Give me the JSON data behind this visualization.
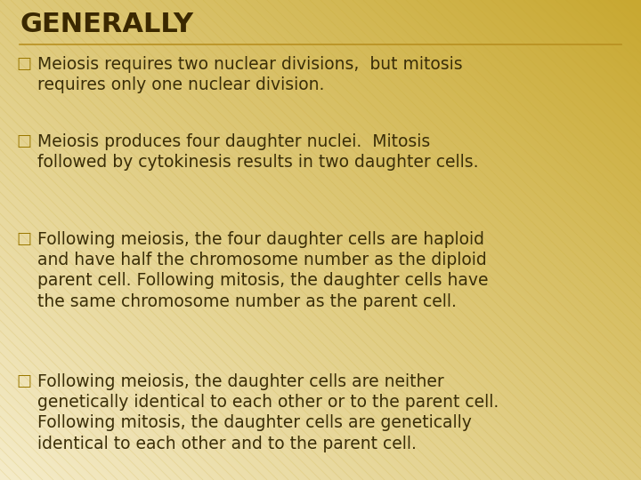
{
  "title": "GENERALLY",
  "title_color": "#3a2800",
  "title_fontsize": 22,
  "bg_color_tl": "#f5ecca",
  "bg_color_br": "#c8a830",
  "divider_color": "#b89020",
  "text_color": "#3a2e08",
  "bullet_char": "□",
  "bullet_color": "#9a7800",
  "bullet_fontsize": 13,
  "text_fontsize": 13.5,
  "stripe_color": "#c8a830",
  "stripe_alpha": 0.18,
  "bullets": [
    "Meiosis requires two nuclear divisions,  but mitosis\nrequires only one nuclear division.",
    "Meiosis produces four daughter nuclei.  Mitosis\nfollowed by cytokinesis results in two daughter cells.",
    "Following meiosis, the four daughter cells are haploid\nand have half the chromosome number as the diploid\nparent cell. Following mitosis, the daughter cells have\nthe same chromosome number as the parent cell.",
    "Following meiosis, the daughter cells are neither\ngenetically identical to each other or to the parent cell.\nFollowing mitosis, the daughter cells are genetically\nidentical to each other and to the parent cell."
  ]
}
